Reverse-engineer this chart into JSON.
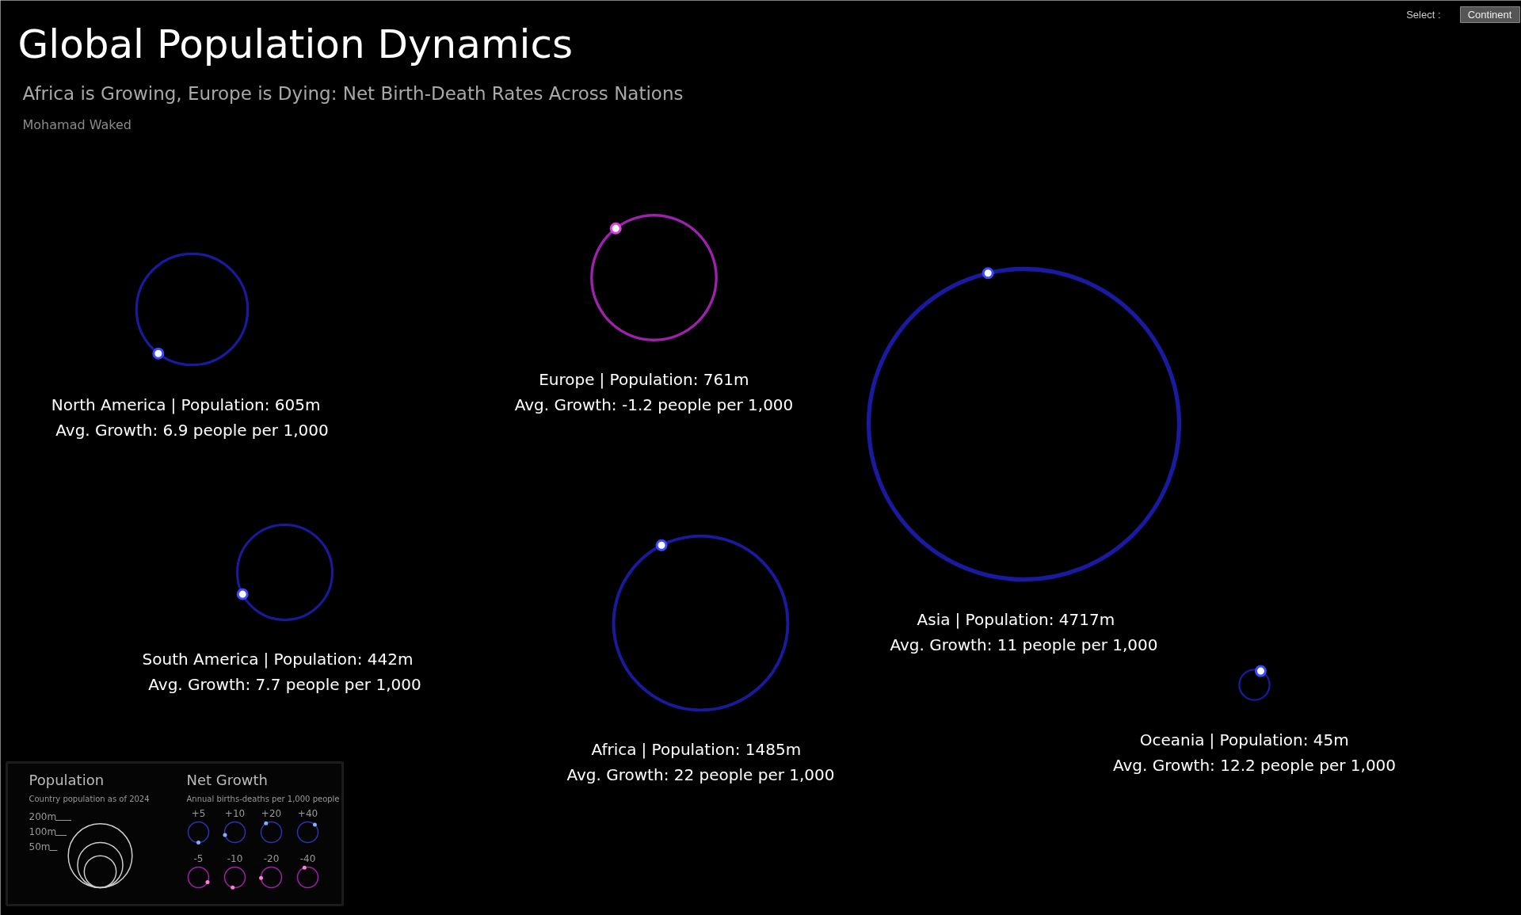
{
  "chart_data": {
    "type": "other",
    "title": "Global Population Dynamics",
    "subtitle": "Africa is Growing, Europe is Dying: Net Birth-Death Rates Across Nations",
    "categories": [
      "North America",
      "Europe",
      "Asia",
      "South America",
      "Africa",
      "Oceania"
    ],
    "series": [
      {
        "values": [
          605,
          761,
          4717,
          442,
          1485,
          45
        ],
        "colors": [
          "#1a1aa0",
          "#a020b0",
          "#1a1aa0",
          "#1a1aa0",
          "#1a1aa0",
          "#1a1aa0"
        ],
        "value_labels": [
          "| Population: 605m",
          "| Population: 761m",
          "| Population: 4717m",
          "| Population: 442m",
          "| Population: 1485m",
          "| Population: 45m"
        ]
      },
      {
        "values": [
          6.9,
          -1.2,
          11,
          7.7,
          22,
          12.2
        ],
        "colors": [
          "#3a4aff",
          "#e040e0",
          "#3a4aff",
          "#3a4aff",
          "#3a4aff",
          "#3a4aff"
        ],
        "value_labels": [
          "Avg. Growth: 6.9 people per 1,000",
          "Avg. Growth: -1.2 people per 1,000",
          "Avg. Growth: 11 people per 1,000",
          "Avg. Growth: 7.7 people per 1,000",
          "Avg. Growth: 22 people per 1,000",
          "Avg. Growth: 12.2 people per 1,000"
        ]
      }
    ],
    "annotations": [
      "Mohamad Waked",
      "Select :",
      "Continent",
      "Population",
      "Country population as of 2024",
      "Net Growth",
      "Annual births-deaths per 1,000 people",
      "+5",
      "+10",
      "+20",
      "+40",
      "-5",
      "-10",
      "-20",
      "-40",
      "200m",
      "100m",
      "50m"
    ]
  }
}
